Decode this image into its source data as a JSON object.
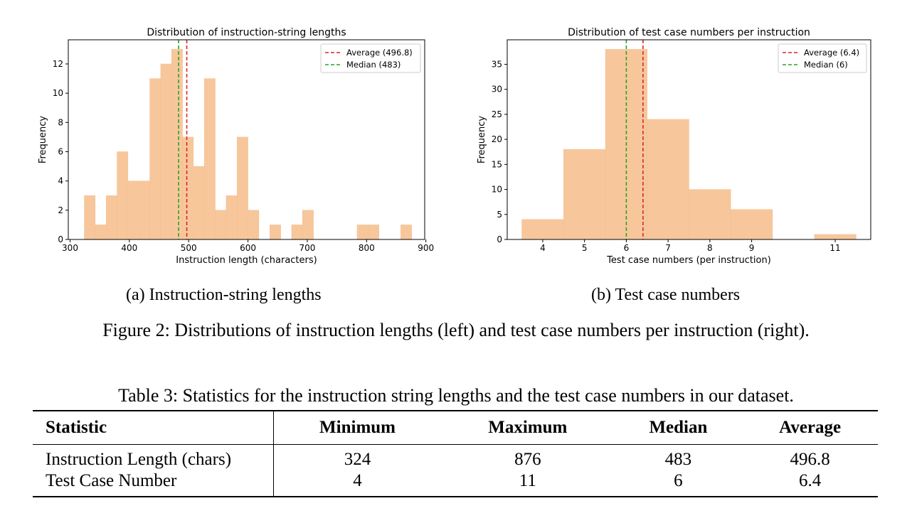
{
  "figure": {
    "subcaption_a": "(a) Instruction-string lengths",
    "subcaption_b": "(b) Test case numbers",
    "caption": "Figure 2: Distributions of instruction lengths (left) and test case numbers per instruction (right)."
  },
  "chart_data": [
    {
      "type": "bar",
      "title": "Distribution of instruction-string lengths",
      "xlabel": "Instruction length (characters)",
      "ylabel": "Frequency",
      "xlim": [
        297,
        898
      ],
      "ylim": [
        0,
        13.65
      ],
      "xticks": [
        300,
        400,
        500,
        600,
        700,
        800,
        900
      ],
      "yticks": [
        0,
        2,
        4,
        6,
        8,
        10,
        12
      ],
      "bins": [
        {
          "x0": 324,
          "x1": 342.4,
          "count": 3
        },
        {
          "x0": 342.4,
          "x1": 360.8,
          "count": 1
        },
        {
          "x0": 360.8,
          "x1": 379.2,
          "count": 3
        },
        {
          "x0": 379.2,
          "x1": 397.6,
          "count": 6
        },
        {
          "x0": 397.6,
          "x1": 416.0,
          "count": 4
        },
        {
          "x0": 416.0,
          "x1": 434.4,
          "count": 4
        },
        {
          "x0": 434.4,
          "x1": 452.8,
          "count": 11
        },
        {
          "x0": 452.8,
          "x1": 471.2,
          "count": 12
        },
        {
          "x0": 471.2,
          "x1": 489.6,
          "count": 13
        },
        {
          "x0": 489.6,
          "x1": 508.0,
          "count": 7
        },
        {
          "x0": 508.0,
          "x1": 526.4,
          "count": 5
        },
        {
          "x0": 526.4,
          "x1": 544.8,
          "count": 11
        },
        {
          "x0": 544.8,
          "x1": 563.2,
          "count": 2
        },
        {
          "x0": 563.2,
          "x1": 581.6,
          "count": 3
        },
        {
          "x0": 581.6,
          "x1": 600.0,
          "count": 7
        },
        {
          "x0": 600.0,
          "x1": 618.4,
          "count": 2
        },
        {
          "x0": 618.4,
          "x1": 636.8,
          "count": 0
        },
        {
          "x0": 636.8,
          "x1": 655.2,
          "count": 1
        },
        {
          "x0": 655.2,
          "x1": 673.6,
          "count": 0
        },
        {
          "x0": 673.6,
          "x1": 692.0,
          "count": 1
        },
        {
          "x0": 692.0,
          "x1": 710.4,
          "count": 2
        },
        {
          "x0": 710.4,
          "x1": 728.8,
          "count": 0
        },
        {
          "x0": 728.8,
          "x1": 747.2,
          "count": 0
        },
        {
          "x0": 747.2,
          "x1": 765.6,
          "count": 0
        },
        {
          "x0": 765.6,
          "x1": 784.0,
          "count": 0
        },
        {
          "x0": 784.0,
          "x1": 802.4,
          "count": 1
        },
        {
          "x0": 802.4,
          "x1": 820.8,
          "count": 1
        },
        {
          "x0": 820.8,
          "x1": 839.2,
          "count": 0
        },
        {
          "x0": 839.2,
          "x1": 857.6,
          "count": 0
        },
        {
          "x0": 857.6,
          "x1": 876.0,
          "count": 1
        }
      ],
      "lines": [
        {
          "label": "Average (496.8)",
          "x": 496.8,
          "color": "#d62728"
        },
        {
          "label": "Median (483)",
          "x": 483,
          "color": "#2ca02c"
        }
      ],
      "bar_color": "#f7c79b",
      "legend": "top-right",
      "grid": false
    },
    {
      "type": "bar",
      "title": "Distribution of test case numbers per instruction",
      "xlabel": "Test case numbers (per instruction)",
      "ylabel": "Frequency",
      "xlim": [
        3.15,
        11.85
      ],
      "ylim": [
        0,
        39.9
      ],
      "xticks": [
        4,
        5,
        6,
        7,
        8,
        9,
        11
      ],
      "yticks": [
        0,
        5,
        10,
        15,
        20,
        25,
        30,
        35
      ],
      "bins": [
        {
          "x0": 3.5,
          "x1": 4.5,
          "count": 4
        },
        {
          "x0": 4.5,
          "x1": 5.5,
          "count": 18
        },
        {
          "x0": 5.5,
          "x1": 6.5,
          "count": 38
        },
        {
          "x0": 6.5,
          "x1": 7.5,
          "count": 24
        },
        {
          "x0": 7.5,
          "x1": 8.5,
          "count": 10
        },
        {
          "x0": 8.5,
          "x1": 9.5,
          "count": 6
        },
        {
          "x0": 10.5,
          "x1": 11.5,
          "count": 1
        }
      ],
      "lines": [
        {
          "label": "Average (6.4)",
          "x": 6.4,
          "color": "#d62728"
        },
        {
          "label": "Median (6)",
          "x": 6,
          "color": "#2ca02c"
        }
      ],
      "bar_color": "#f7c79b",
      "legend": "top-right",
      "grid": false
    }
  ],
  "table": {
    "caption": "Table 3: Statistics for the instruction string lengths and the test case numbers in our dataset.",
    "headers": [
      "Statistic",
      "Minimum",
      "Maximum",
      "Median",
      "Average"
    ],
    "rows": [
      [
        "Instruction Length (chars)",
        "324",
        "876",
        "483",
        "496.8"
      ],
      [
        "Test Case Number",
        "4",
        "11",
        "6",
        "6.4"
      ]
    ]
  }
}
